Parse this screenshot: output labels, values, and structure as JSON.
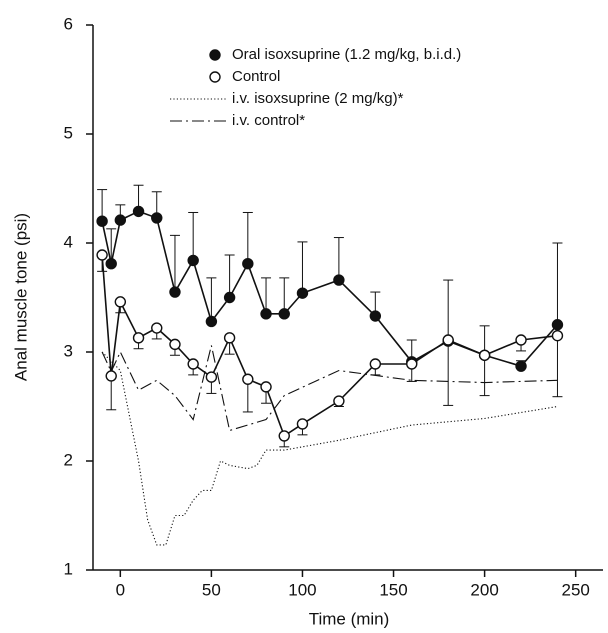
{
  "chart_data": {
    "type": "line",
    "xlabel": "Time (min)",
    "ylabel": "Anal muscle tone (psi)",
    "xlim": [
      -15,
      265
    ],
    "xticks": [
      0,
      50,
      100,
      150,
      200,
      250
    ],
    "ylim": [
      1,
      6
    ],
    "yticks": [
      1,
      2,
      3,
      4,
      5,
      6
    ],
    "legend": "upper center",
    "series": [
      {
        "name": "Oral isoxsuprine (1.2 mg/kg, b.i.d.)",
        "color": "#111111",
        "marker": "filled",
        "dash": "solid",
        "error_direction": "up",
        "x": [
          -10,
          -5,
          0,
          10,
          20,
          30,
          40,
          50,
          60,
          70,
          80,
          90,
          100,
          120,
          140,
          160,
          180,
          200,
          220,
          240
        ],
        "values": [
          4.2,
          3.81,
          4.21,
          4.29,
          4.23,
          3.55,
          3.84,
          3.28,
          3.5,
          3.81,
          3.35,
          3.35,
          3.54,
          3.66,
          3.33,
          2.91,
          3.1,
          2.97,
          2.87,
          3.25
        ],
        "errors": [
          0.29,
          0.32,
          0.14,
          0.24,
          0.24,
          0.52,
          0.44,
          0.4,
          0.39,
          0.47,
          0.33,
          0.33,
          0.47,
          0.39,
          0.22,
          0.2,
          0.56,
          0.27,
          0.05,
          0.75
        ]
      },
      {
        "name": "Control",
        "color": "#111111",
        "marker": "open",
        "dash": "solid",
        "error_direction": "down",
        "x": [
          -10,
          -5,
          0,
          10,
          20,
          30,
          40,
          50,
          60,
          70,
          80,
          90,
          100,
          120,
          140,
          160,
          180,
          200,
          220,
          240
        ],
        "values": [
          3.89,
          2.78,
          3.46,
          3.13,
          3.22,
          3.07,
          2.89,
          2.77,
          3.13,
          2.75,
          2.68,
          2.23,
          2.34,
          2.55,
          2.89,
          2.89,
          3.11,
          2.97,
          3.11,
          3.15
        ],
        "errors": [
          0.15,
          0.31,
          0.1,
          0.1,
          0.1,
          0.1,
          0.1,
          0.15,
          0.15,
          0.3,
          0.15,
          0.1,
          0.1,
          0.05,
          0.1,
          0.16,
          0.6,
          0.37,
          0.1,
          0.56
        ]
      },
      {
        "name": "i.v. isoxsuprine (2 mg/kg)*",
        "color": "#111111",
        "marker": null,
        "dash": "dotted",
        "x": [
          -10,
          0,
          10,
          15,
          20,
          25,
          30,
          35,
          40,
          45,
          50,
          55,
          60,
          70,
          75,
          80,
          90,
          120,
          160,
          200,
          240
        ],
        "values": [
          3.0,
          2.83,
          2.0,
          1.46,
          1.23,
          1.23,
          1.5,
          1.5,
          1.64,
          1.73,
          1.73,
          2.0,
          1.96,
          1.93,
          1.96,
          2.1,
          2.1,
          2.19,
          2.33,
          2.39,
          2.5
        ]
      },
      {
        "name": "i.v. control*",
        "color": "#111111",
        "marker": null,
        "dash": "dashdot",
        "x": [
          -10,
          -5,
          0,
          10,
          20,
          30,
          40,
          50,
          60,
          70,
          80,
          90,
          120,
          160,
          200,
          240
        ],
        "values": [
          3.0,
          2.82,
          3.0,
          2.65,
          2.74,
          2.6,
          2.38,
          3.06,
          2.28,
          2.33,
          2.38,
          2.6,
          2.83,
          2.74,
          2.72,
          2.74
        ]
      }
    ]
  }
}
